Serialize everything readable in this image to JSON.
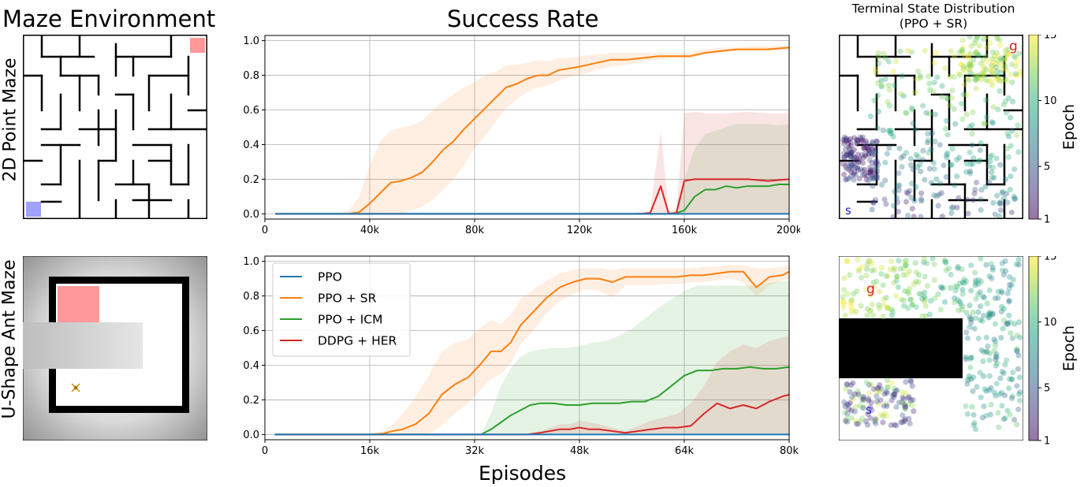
{
  "col_titles": {
    "maze": "Maze Environment",
    "success": "Success Rate",
    "terminal_line1": "Terminal State Distribution",
    "terminal_line2": "(PPO + SR)"
  },
  "row_labels": {
    "top": "2D Point Maze",
    "bottom": "U-Shape Ant Maze"
  },
  "shared_xlabel": "Episodes",
  "colorbar": {
    "label": "Epoch",
    "ticks": [
      "1",
      "5",
      "10",
      "15"
    ],
    "min": 1,
    "max": 15,
    "colormap": "viridis"
  },
  "maze_markers": {
    "start": "s",
    "goal": "g"
  },
  "colors": {
    "PPO": "#1f77b4",
    "PPO + SR": "#ff7f0e",
    "PPO + ICM": "#2ca02c",
    "DDPG + HER": "#d62728",
    "start_square": "#a0a0ff",
    "goal_square": "#ff9999",
    "start_label": "#1a1ad6",
    "goal_label": "#e02020"
  },
  "chart_data": [
    {
      "type": "line",
      "title": "Success Rate",
      "xlabel": "",
      "ylabel": "",
      "xlim": [
        0,
        200000
      ],
      "ylim": [
        -0.03,
        1.03
      ],
      "xticks": [
        0,
        40000,
        80000,
        120000,
        160000,
        200000
      ],
      "xtick_labels": [
        "0",
        "40k",
        "80k",
        "120k",
        "160k",
        "200k"
      ],
      "yticks": [
        0.0,
        0.2,
        0.4,
        0.6,
        0.8,
        1.0
      ],
      "ytick_labels": [
        "0.0",
        "0.2",
        "0.4",
        "0.6",
        "0.8",
        "1.0"
      ],
      "grid": true,
      "series": [
        {
          "name": "PPO + SR",
          "x": [
            4000,
            10000,
            20000,
            28000,
            32000,
            36000,
            40000,
            44000,
            48000,
            52000,
            56000,
            60000,
            64000,
            68000,
            72000,
            76000,
            80000,
            84000,
            88000,
            92000,
            96000,
            100000,
            104000,
            108000,
            112000,
            116000,
            120000,
            126000,
            132000,
            138000,
            144000,
            150000,
            156000,
            162000,
            168000,
            174000,
            180000,
            186000,
            192000,
            200000
          ],
          "y": [
            0,
            0,
            0,
            0,
            0,
            0.01,
            0.06,
            0.12,
            0.18,
            0.19,
            0.21,
            0.24,
            0.3,
            0.37,
            0.42,
            0.49,
            0.55,
            0.61,
            0.67,
            0.73,
            0.75,
            0.78,
            0.8,
            0.8,
            0.83,
            0.84,
            0.85,
            0.87,
            0.89,
            0.89,
            0.9,
            0.91,
            0.91,
            0.91,
            0.93,
            0.94,
            0.95,
            0.95,
            0.95,
            0.96
          ],
          "lower": [
            0,
            0,
            0,
            0,
            0,
            0,
            0,
            0,
            0,
            0,
            0.02,
            0.04,
            0.08,
            0.14,
            0.2,
            0.28,
            0.38,
            0.45,
            0.53,
            0.61,
            0.66,
            0.7,
            0.73,
            0.74,
            0.77,
            0.79,
            0.8,
            0.83,
            0.85,
            0.86,
            0.88,
            0.89,
            0.9,
            0.9,
            0.92,
            0.93,
            0.94,
            0.94,
            0.94,
            0.95
          ],
          "upper": [
            0,
            0,
            0,
            0,
            0.02,
            0.1,
            0.28,
            0.42,
            0.48,
            0.5,
            0.51,
            0.54,
            0.6,
            0.65,
            0.69,
            0.73,
            0.76,
            0.8,
            0.82,
            0.86,
            0.86,
            0.87,
            0.89,
            0.88,
            0.9,
            0.9,
            0.91,
            0.92,
            0.93,
            0.93,
            0.93,
            0.93,
            0.93,
            0.93,
            0.95,
            0.96,
            0.96,
            0.97,
            0.97,
            0.97
          ]
        },
        {
          "name": "PPO + ICM",
          "x": [
            4000,
            60000,
            100000,
            140000,
            156000,
            160000,
            164000,
            168000,
            172000,
            176000,
            180000,
            184000,
            188000,
            192000,
            196000,
            200000
          ],
          "y": [
            0,
            0,
            0,
            0,
            0,
            0.02,
            0.1,
            0.14,
            0.14,
            0.16,
            0.15,
            0.16,
            0.16,
            0.16,
            0.17,
            0.17
          ],
          "lower": [
            0,
            0,
            0,
            0,
            0,
            0,
            0,
            0,
            0,
            0,
            0,
            0,
            0,
            0,
            0,
            0
          ],
          "upper": [
            0,
            0,
            0,
            0,
            0,
            0.2,
            0.38,
            0.46,
            0.48,
            0.5,
            0.52,
            0.52,
            0.52,
            0.52,
            0.51,
            0.52
          ]
        },
        {
          "name": "DDPG + HER",
          "x": [
            4000,
            60000,
            100000,
            140000,
            144000,
            147000,
            151000,
            154000,
            157000,
            160000,
            164000,
            168000,
            176000,
            184000,
            192000,
            200000
          ],
          "y": [
            0,
            0,
            0,
            0,
            0.002,
            0.005,
            0.16,
            0.002,
            0.005,
            0.19,
            0.2,
            0.2,
            0.2,
            0.2,
            0.19,
            0.2
          ],
          "lower": [
            0,
            0,
            0,
            0,
            0,
            0,
            0,
            0,
            0,
            0,
            0,
            0,
            0,
            0,
            0,
            0
          ],
          "upper": [
            0,
            0,
            0,
            0,
            0.005,
            0.02,
            0.48,
            0.02,
            0.02,
            0.58,
            0.59,
            0.58,
            0.58,
            0.59,
            0.58,
            0.58
          ]
        },
        {
          "name": "PPO",
          "x": [
            4000,
            200000
          ],
          "y": [
            0,
            0
          ],
          "lower": [
            0,
            0
          ],
          "upper": [
            0,
            0
          ]
        }
      ]
    },
    {
      "type": "line",
      "title": "",
      "xlabel": "Episodes",
      "ylabel": "",
      "xlim": [
        0,
        80000
      ],
      "ylim": [
        -0.03,
        1.03
      ],
      "xticks": [
        0,
        16000,
        32000,
        48000,
        64000,
        80000
      ],
      "xtick_labels": [
        "0",
        "16k",
        "32k",
        "48k",
        "64k",
        "80k"
      ],
      "yticks": [
        0.0,
        0.2,
        0.4,
        0.6,
        0.8,
        1.0
      ],
      "ytick_labels": [
        "0.0",
        "0.2",
        "0.4",
        "0.6",
        "0.8",
        "1.0"
      ],
      "grid": true,
      "legend": "top-left",
      "series": [
        {
          "name": "PPO + SR",
          "x": [
            1500,
            16000,
            18000,
            19500,
            21000,
            23000,
            25000,
            27000,
            29000,
            31000,
            33000,
            34500,
            36000,
            37500,
            39000,
            41000,
            43000,
            45000,
            47000,
            49000,
            51000,
            53000,
            55000,
            57000,
            59000,
            61000,
            63000,
            65000,
            67000,
            69000,
            71000,
            73000,
            75000,
            77000,
            79000,
            80000
          ],
          "y": [
            0,
            0,
            0.005,
            0.02,
            0.03,
            0.06,
            0.12,
            0.23,
            0.29,
            0.33,
            0.41,
            0.48,
            0.48,
            0.53,
            0.63,
            0.71,
            0.79,
            0.85,
            0.88,
            0.9,
            0.9,
            0.88,
            0.91,
            0.91,
            0.91,
            0.91,
            0.91,
            0.92,
            0.92,
            0.93,
            0.94,
            0.94,
            0.85,
            0.91,
            0.92,
            0.94
          ],
          "lower": [
            0,
            0,
            0,
            0,
            0,
            0,
            0,
            0.05,
            0.12,
            0.18,
            0.26,
            0.32,
            0.35,
            0.41,
            0.52,
            0.6,
            0.7,
            0.77,
            0.81,
            0.84,
            0.83,
            0.79,
            0.86,
            0.86,
            0.86,
            0.87,
            0.87,
            0.88,
            0.88,
            0.89,
            0.9,
            0.88,
            0.8,
            0.86,
            0.89,
            0.9
          ],
          "upper": [
            0,
            0,
            0.02,
            0.06,
            0.12,
            0.22,
            0.34,
            0.48,
            0.53,
            0.55,
            0.62,
            0.66,
            0.64,
            0.69,
            0.78,
            0.84,
            0.89,
            0.93,
            0.95,
            0.96,
            0.96,
            0.95,
            0.96,
            0.96,
            0.96,
            0.96,
            0.96,
            0.96,
            0.97,
            0.97,
            0.98,
            0.98,
            0.96,
            0.96,
            0.97,
            0.98
          ]
        },
        {
          "name": "PPO + ICM",
          "x": [
            1500,
            33000,
            34500,
            36000,
            37500,
            39000,
            40500,
            42000,
            44000,
            46000,
            48000,
            50000,
            52000,
            54000,
            56000,
            58000,
            60000,
            62000,
            64000,
            66000,
            68000,
            70000,
            72000,
            74000,
            76000,
            78000,
            80000
          ],
          "y": [
            0,
            0,
            0.03,
            0.07,
            0.11,
            0.14,
            0.17,
            0.18,
            0.18,
            0.17,
            0.17,
            0.18,
            0.18,
            0.18,
            0.19,
            0.19,
            0.22,
            0.28,
            0.34,
            0.37,
            0.37,
            0.38,
            0.38,
            0.39,
            0.38,
            0.38,
            0.39
          ],
          "lower": [
            0,
            0,
            0,
            0,
            0,
            0,
            0,
            0,
            0,
            0,
            0,
            0,
            0,
            0,
            0,
            0,
            0,
            0,
            0,
            0,
            0,
            0,
            0,
            0,
            0,
            0,
            0
          ],
          "upper": [
            0,
            0,
            0.12,
            0.28,
            0.38,
            0.45,
            0.48,
            0.49,
            0.5,
            0.5,
            0.51,
            0.53,
            0.54,
            0.57,
            0.61,
            0.67,
            0.73,
            0.78,
            0.83,
            0.86,
            0.86,
            0.86,
            0.86,
            0.86,
            0.87,
            0.88,
            0.89
          ]
        },
        {
          "name": "DDPG + HER",
          "x": [
            1500,
            40000,
            42000,
            43500,
            45000,
            46500,
            48000,
            49500,
            51000,
            53000,
            55000,
            57000,
            59000,
            61000,
            63000,
            65000,
            67000,
            69000,
            71000,
            73000,
            75000,
            77000,
            79000,
            80000
          ],
          "y": [
            0,
            0,
            0.01,
            0.02,
            0.03,
            0.03,
            0.04,
            0.03,
            0.03,
            0.02,
            0.01,
            0.02,
            0.03,
            0.04,
            0.04,
            0.05,
            0.12,
            0.18,
            0.15,
            0.17,
            0.15,
            0.19,
            0.22,
            0.23
          ],
          "lower": [
            0,
            0,
            0,
            0,
            0,
            0,
            0,
            0,
            0,
            0,
            0,
            0,
            0,
            0,
            0,
            0,
            0,
            0,
            0,
            0,
            0,
            0,
            0,
            0
          ],
          "upper": [
            0,
            0,
            0.02,
            0.04,
            0.06,
            0.06,
            0.08,
            0.07,
            0.06,
            0.04,
            0.02,
            0.05,
            0.08,
            0.1,
            0.12,
            0.18,
            0.28,
            0.42,
            0.48,
            0.52,
            0.5,
            0.54,
            0.56,
            0.57
          ]
        },
        {
          "name": "PPO",
          "x": [
            1500,
            80000
          ],
          "y": [
            0,
            0
          ],
          "lower": [
            0,
            0
          ],
          "upper": [
            0,
            0
          ]
        }
      ]
    }
  ]
}
